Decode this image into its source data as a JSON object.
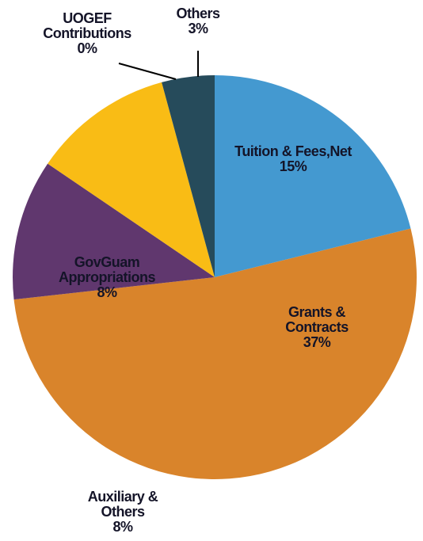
{
  "chart_data": {
    "type": "pie",
    "categories": [
      "Tuition & Fees,Net",
      "Grants & Contracts",
      "Auxiliary & Others",
      "GovGuam Appropriations",
      "UOGEF Contributions",
      "Others"
    ],
    "values": [
      15,
      37,
      8,
      8,
      0,
      3
    ],
    "value_labels": [
      "15%",
      "37%",
      "8%",
      "8%",
      "0%",
      "3%"
    ],
    "colors": [
      "#4499d0",
      "#d9842b",
      "#60376e",
      "#f9bc15",
      "#2c4a7a",
      "#264b5b"
    ]
  }
}
